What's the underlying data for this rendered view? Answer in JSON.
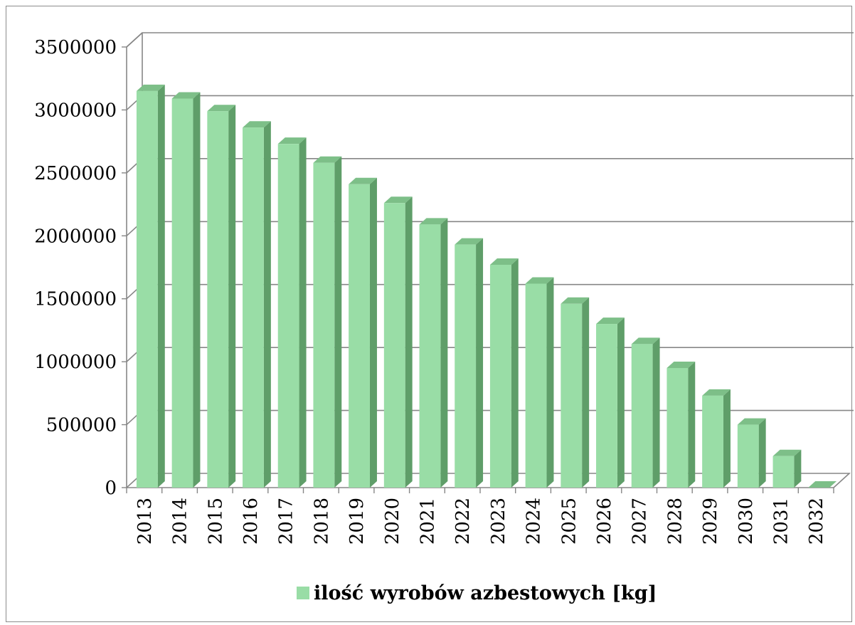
{
  "chart_data": {
    "type": "bar",
    "title": "",
    "xlabel": "",
    "ylabel": "",
    "categories": [
      "2013",
      "2014",
      "2015",
      "2016",
      "2017",
      "2018",
      "2019",
      "2020",
      "2021",
      "2022",
      "2023",
      "2024",
      "2025",
      "2026",
      "2027",
      "2028",
      "2029",
      "2030",
      "2031",
      "2032"
    ],
    "series": [
      {
        "name": "ilość wyrobów azbestowych [kg]",
        "values": [
          3150000,
          3090000,
          2990000,
          2860000,
          2730000,
          2580000,
          2410000,
          2260000,
          2090000,
          1930000,
          1770000,
          1620000,
          1460000,
          1300000,
          1140000,
          950000,
          730000,
          500000,
          250000,
          0
        ],
        "color": "#99dda6"
      }
    ],
    "ylim": [
      0,
      3500000
    ],
    "yticks": [
      "0",
      "500000",
      "1000000",
      "1500000",
      "2000000",
      "2500000",
      "3000000",
      "3500000"
    ],
    "grid": true,
    "legend": "bottom",
    "colors": {
      "bar_front": "#99dda6",
      "bar_side": "#5f9e69",
      "bar_top": "#7dbf88",
      "gridline": "#878787",
      "axis": "#878787"
    }
  }
}
